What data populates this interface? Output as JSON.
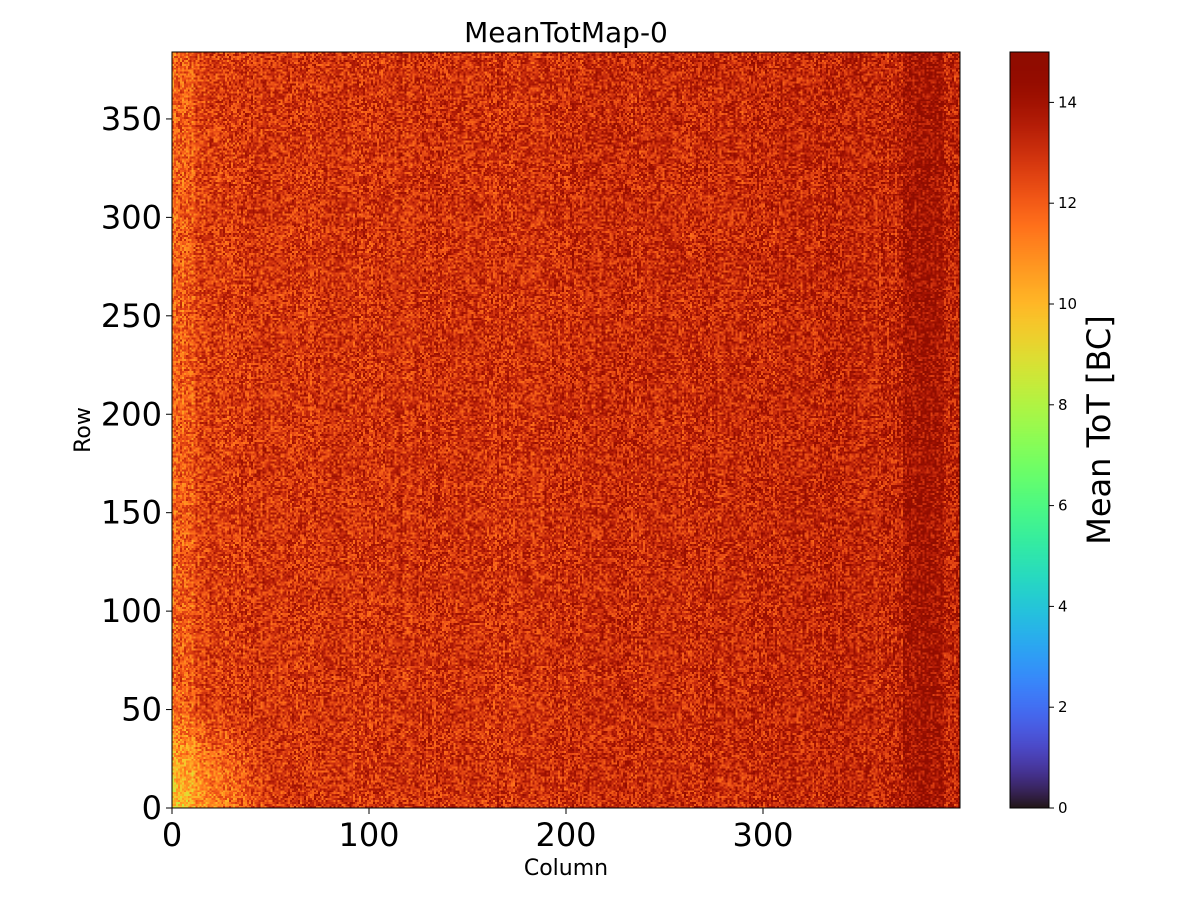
{
  "chart_data": {
    "type": "heatmap",
    "title": "MeanTotMap-0",
    "xlabel": "Column",
    "ylabel": "Row",
    "xlim": [
      0,
      400
    ],
    "ylim": [
      0,
      384
    ],
    "grid_columns": 400,
    "grid_rows": 384,
    "xticks": [
      0,
      100,
      200,
      300
    ],
    "yticks": [
      0,
      50,
      100,
      150,
      200,
      250,
      300,
      350
    ],
    "colorbar": {
      "label": "Mean ToT [BC]",
      "range": [
        0,
        15
      ],
      "ticks": [
        0,
        2,
        4,
        6,
        8,
        10,
        12,
        14
      ],
      "colormap": "turbo"
    },
    "value_summary": {
      "typical_min": 10,
      "typical_max": 15,
      "mean": 12.8,
      "notes_visible": "values mostly 11-14; brighter ~10-11 near lower-left corner; darker ~14 near column 375-390"
    }
  }
}
